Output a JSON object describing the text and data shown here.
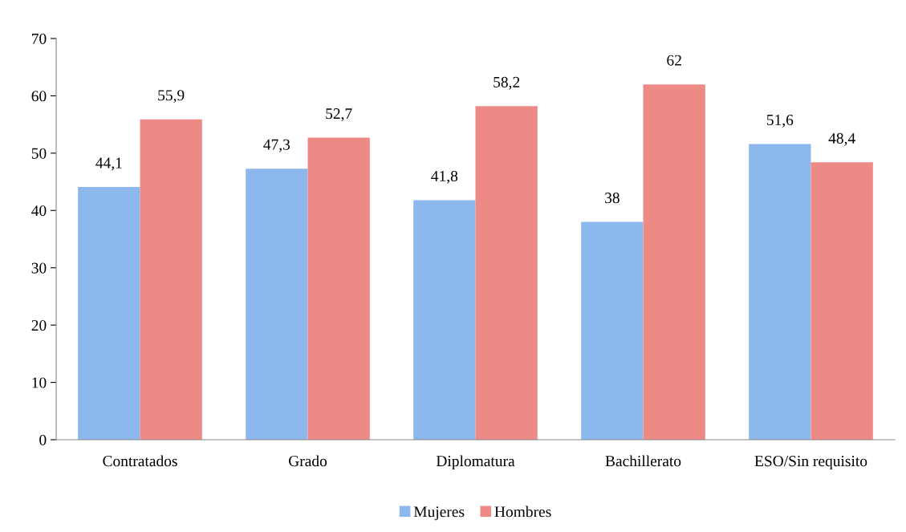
{
  "chart_data": {
    "type": "bar",
    "categories": [
      "Contratados",
      "Grado",
      "Diplomatura",
      "Bachillerato",
      "ESO/Sin requisito"
    ],
    "series": [
      {
        "name": "Mujeres",
        "color": "#8db8ee",
        "values": [
          44.1,
          47.3,
          41.8,
          38,
          51.6
        ],
        "value_labels": [
          "44,1",
          "47,3",
          "41,8",
          "38",
          "51,6"
        ]
      },
      {
        "name": "Hombres",
        "color": "#ee8a86",
        "values": [
          55.9,
          52.7,
          58.2,
          62,
          48.4
        ],
        "value_labels": [
          "55,9",
          "52,7",
          "58,2",
          "62",
          "48,4"
        ]
      }
    ],
    "ylim": [
      0,
      70
    ],
    "yticks": [
      0,
      10,
      20,
      30,
      40,
      50,
      60,
      70
    ],
    "grid": false,
    "legend": "bottom"
  }
}
